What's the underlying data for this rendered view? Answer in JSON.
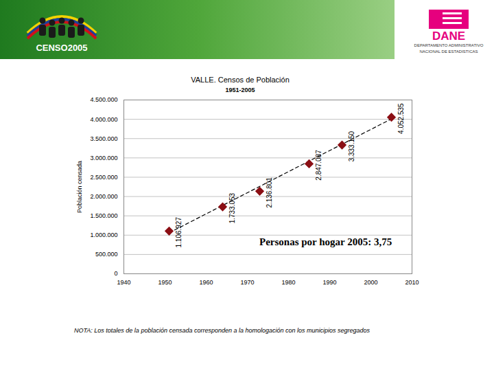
{
  "header": {
    "left_logo": "CENSO2005",
    "right_logo": "DANE",
    "right_caption": "DEPARTAMENTO ADMINISTRATIVO NACIONAL DE ESTADISTICAS"
  },
  "chart_data": {
    "type": "scatter",
    "title": "VALLE. Censos de Población",
    "subtitle": "1951-2005",
    "y_label": "Población censada",
    "annotations": [
      "Personas por hogar 2005: 3,75"
    ],
    "caption": "NOTA: Los totales de la población censada corresponden a la homologación con los municipios segregados",
    "x": [
      1951,
      1964,
      1973,
      1985,
      1993,
      2005
    ],
    "values": [
      1106927,
      1733053,
      2136801,
      2847087,
      3333150,
      4052535
    ],
    "value_labels": [
      "1.106.927",
      "1.733.053",
      "2.136.801",
      "2.847.087",
      "3.333.150",
      "4.052.535"
    ],
    "data_labels": true,
    "color": "#8b0f14",
    "marker": "diamond",
    "trend": {
      "x": [
        1951,
        2005
      ],
      "values": [
        1060000,
        4010000
      ],
      "color": "#000000",
      "line_style": "dashed"
    },
    "xlim": [
      1940,
      2010
    ],
    "xticks": [
      1940,
      1950,
      1960,
      1970,
      1980,
      1990,
      2000,
      2010
    ],
    "ylim": [
      0,
      4500000
    ],
    "yticks": [
      0,
      {
        "value": 500000,
        "label": "500.000"
      },
      {
        "value": 1000000,
        "label": "1.000.000"
      },
      {
        "value": 1500000,
        "label": "1.500.000"
      },
      {
        "value": 2000000,
        "label": "2.000.000"
      },
      {
        "value": 2500000,
        "label": "2.500.000"
      },
      {
        "value": 3000000,
        "label": "3.000.000"
      },
      {
        "value": 3500000,
        "label": "3.500.000"
      },
      {
        "value": 4000000,
        "label": "4.000.000"
      },
      {
        "value": 4500000,
        "label": "4.500.000"
      }
    ],
    "grid": true
  }
}
